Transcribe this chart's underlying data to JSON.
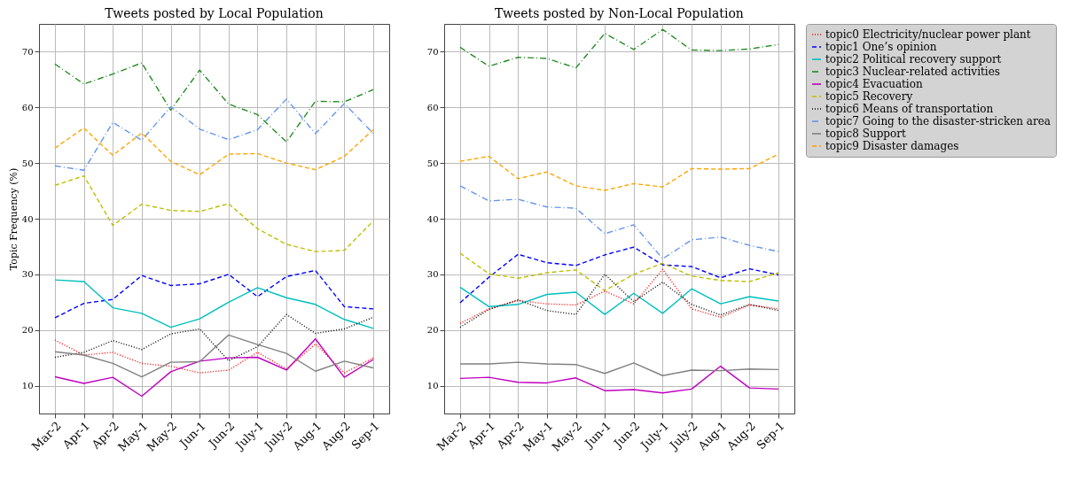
{
  "chart_data": [
    {
      "type": "line",
      "title": "Tweets posted by Local Population",
      "ylabel": "Topic Frequency (%)",
      "categories": [
        "Mar-2",
        "Apr-1",
        "Apr-2",
        "May-1",
        "May-2",
        "Jun-1",
        "Jun-2",
        "July-1",
        "July-2",
        "Aug-1",
        "Aug-2",
        "Sep-1"
      ],
      "ylim": [
        5,
        75
      ],
      "yticks": [
        10,
        20,
        30,
        40,
        50,
        60,
        70
      ],
      "grid": true,
      "legend": "right",
      "series": [
        {
          "name": "topic0 Electricity/nuclear power plant",
          "color": "#ff0000",
          "line_style": "dotted",
          "values": [
            18.2,
            15.5,
            16.0,
            14.0,
            13.5,
            12.3,
            12.8,
            16.0,
            13.0,
            17.5,
            12.3,
            15.0
          ]
        },
        {
          "name": "topic1 One’s opinion",
          "color": "#0000ff",
          "line_style": "dashed",
          "values": [
            22.2,
            24.8,
            25.5,
            29.8,
            28.0,
            28.3,
            30.0,
            26.0,
            29.6,
            30.7,
            24.2,
            23.8
          ]
        },
        {
          "name": "topic2 Political recovery support",
          "color": "#00bfbf",
          "line_style": "solid",
          "values": [
            29.0,
            28.7,
            24.0,
            23.0,
            20.5,
            22.0,
            25.0,
            27.6,
            25.8,
            24.6,
            21.9,
            20.3
          ]
        },
        {
          "name": "topic3 Nuclear-related activities",
          "color": "#228b22",
          "line_style": "dashdot",
          "values": [
            67.8,
            64.2,
            66.0,
            68.0,
            59.5,
            66.7,
            60.6,
            58.7,
            53.8,
            61.1,
            61.0,
            63.2
          ]
        },
        {
          "name": "topic4 Evacuation",
          "color": "#bf00bf",
          "line_style": "solid",
          "values": [
            11.6,
            10.4,
            11.5,
            8.1,
            12.5,
            14.4,
            15.0,
            15.1,
            12.8,
            18.4,
            11.5,
            14.7
          ]
        },
        {
          "name": "topic5 Recovery",
          "color": "#bfbf00",
          "line_style": "dashed",
          "values": [
            46.0,
            47.7,
            38.8,
            42.6,
            41.5,
            41.3,
            42.7,
            38.2,
            35.4,
            34.1,
            34.3,
            39.6
          ]
        },
        {
          "name": "topic6 Means of transportation",
          "color": "#000000",
          "line_style": "dotted",
          "values": [
            15.1,
            16.0,
            18.1,
            16.5,
            19.3,
            20.2,
            14.5,
            17.0,
            22.8,
            19.4,
            20.2,
            22.3
          ]
        },
        {
          "name": "topic7 Going to the disaster-stricken area",
          "color": "#6495ed",
          "line_style": "dashdot",
          "values": [
            49.5,
            48.7,
            57.3,
            54.1,
            60.1,
            56.1,
            54.2,
            56.0,
            61.5,
            55.3,
            60.7,
            55.3
          ]
        },
        {
          "name": "topic8 Support",
          "color": "#808080",
          "line_style": "solid",
          "values": [
            16.1,
            15.5,
            14.0,
            11.6,
            14.2,
            14.3,
            19.1,
            17.4,
            15.8,
            12.6,
            14.4,
            13.2
          ]
        },
        {
          "name": "topic9 Disaster damages",
          "color": "#ffa500",
          "line_style": "dashed",
          "values": [
            52.7,
            56.3,
            51.4,
            55.4,
            50.3,
            47.9,
            51.6,
            51.7,
            50.0,
            48.8,
            51.2,
            56.0
          ]
        }
      ]
    },
    {
      "type": "line",
      "title": "Tweets posted by Non-Local Population",
      "categories": [
        "Mar-2",
        "Apr-1",
        "Apr-2",
        "May-1",
        "May-2",
        "Jun-1",
        "Jun-2",
        "July-1",
        "July-2",
        "Aug-1",
        "Aug-2",
        "Sep-1"
      ],
      "ylim": [
        5,
        75
      ],
      "yticks": [
        10,
        20,
        30,
        40,
        50,
        60,
        70
      ],
      "grid": true,
      "legend": "right",
      "series": [
        {
          "name": "topic0 Electricity/nuclear power plant",
          "color": "#ff0000",
          "line_style": "dotted",
          "values": [
            21.2,
            23.8,
            25.3,
            24.7,
            24.5,
            27.0,
            24.7,
            30.9,
            23.8,
            22.3,
            24.5,
            23.8
          ]
        },
        {
          "name": "topic1 One’s opinion",
          "color": "#0000ff",
          "line_style": "dashed",
          "values": [
            24.9,
            29.5,
            33.6,
            32.1,
            31.6,
            33.5,
            34.9,
            31.7,
            31.4,
            29.4,
            31.0,
            29.9
          ]
        },
        {
          "name": "topic2 Political recovery support",
          "color": "#00bfbf",
          "line_style": "solid",
          "values": [
            27.7,
            24.2,
            24.6,
            26.4,
            26.8,
            22.8,
            26.6,
            23.0,
            27.4,
            24.7,
            26.0,
            25.2
          ]
        },
        {
          "name": "topic3 Nuclear-related activities",
          "color": "#228b22",
          "line_style": "dashdot",
          "values": [
            70.8,
            67.4,
            69.0,
            68.8,
            67.1,
            73.3,
            70.4,
            74.0,
            70.3,
            70.2,
            70.5,
            71.3
          ]
        },
        {
          "name": "topic4 Evacuation",
          "color": "#bf00bf",
          "line_style": "solid",
          "values": [
            11.3,
            11.5,
            10.6,
            10.5,
            11.4,
            9.1,
            9.3,
            8.7,
            9.4,
            13.5,
            9.6,
            9.4
          ]
        },
        {
          "name": "topic5 Recovery",
          "color": "#bfbf00",
          "line_style": "dashed",
          "values": [
            33.8,
            30.1,
            29.3,
            30.3,
            30.8,
            27.1,
            30.0,
            32.0,
            29.7,
            28.9,
            28.7,
            30.3
          ]
        },
        {
          "name": "topic6 Means of transportation",
          "color": "#000000",
          "line_style": "dotted",
          "values": [
            20.5,
            23.7,
            25.4,
            23.5,
            22.8,
            30.0,
            25.1,
            28.6,
            24.6,
            22.7,
            24.6,
            23.5
          ]
        },
        {
          "name": "topic7 Going to the disaster-stricken area",
          "color": "#6495ed",
          "line_style": "dashdot",
          "values": [
            45.9,
            43.2,
            43.5,
            42.1,
            41.9,
            37.3,
            38.9,
            32.8,
            36.2,
            36.7,
            35.2,
            34.1
          ]
        },
        {
          "name": "topic8 Support",
          "color": "#808080",
          "line_style": "solid",
          "values": [
            13.9,
            13.9,
            14.2,
            13.9,
            13.8,
            12.2,
            14.1,
            11.8,
            12.8,
            12.7,
            13.0,
            12.9
          ]
        },
        {
          "name": "topic9 Disaster damages",
          "color": "#ffa500",
          "line_style": "dashed",
          "values": [
            50.3,
            51.2,
            47.2,
            48.4,
            45.9,
            45.1,
            46.3,
            45.7,
            49.0,
            48.9,
            49.0,
            51.6
          ]
        }
      ]
    }
  ]
}
